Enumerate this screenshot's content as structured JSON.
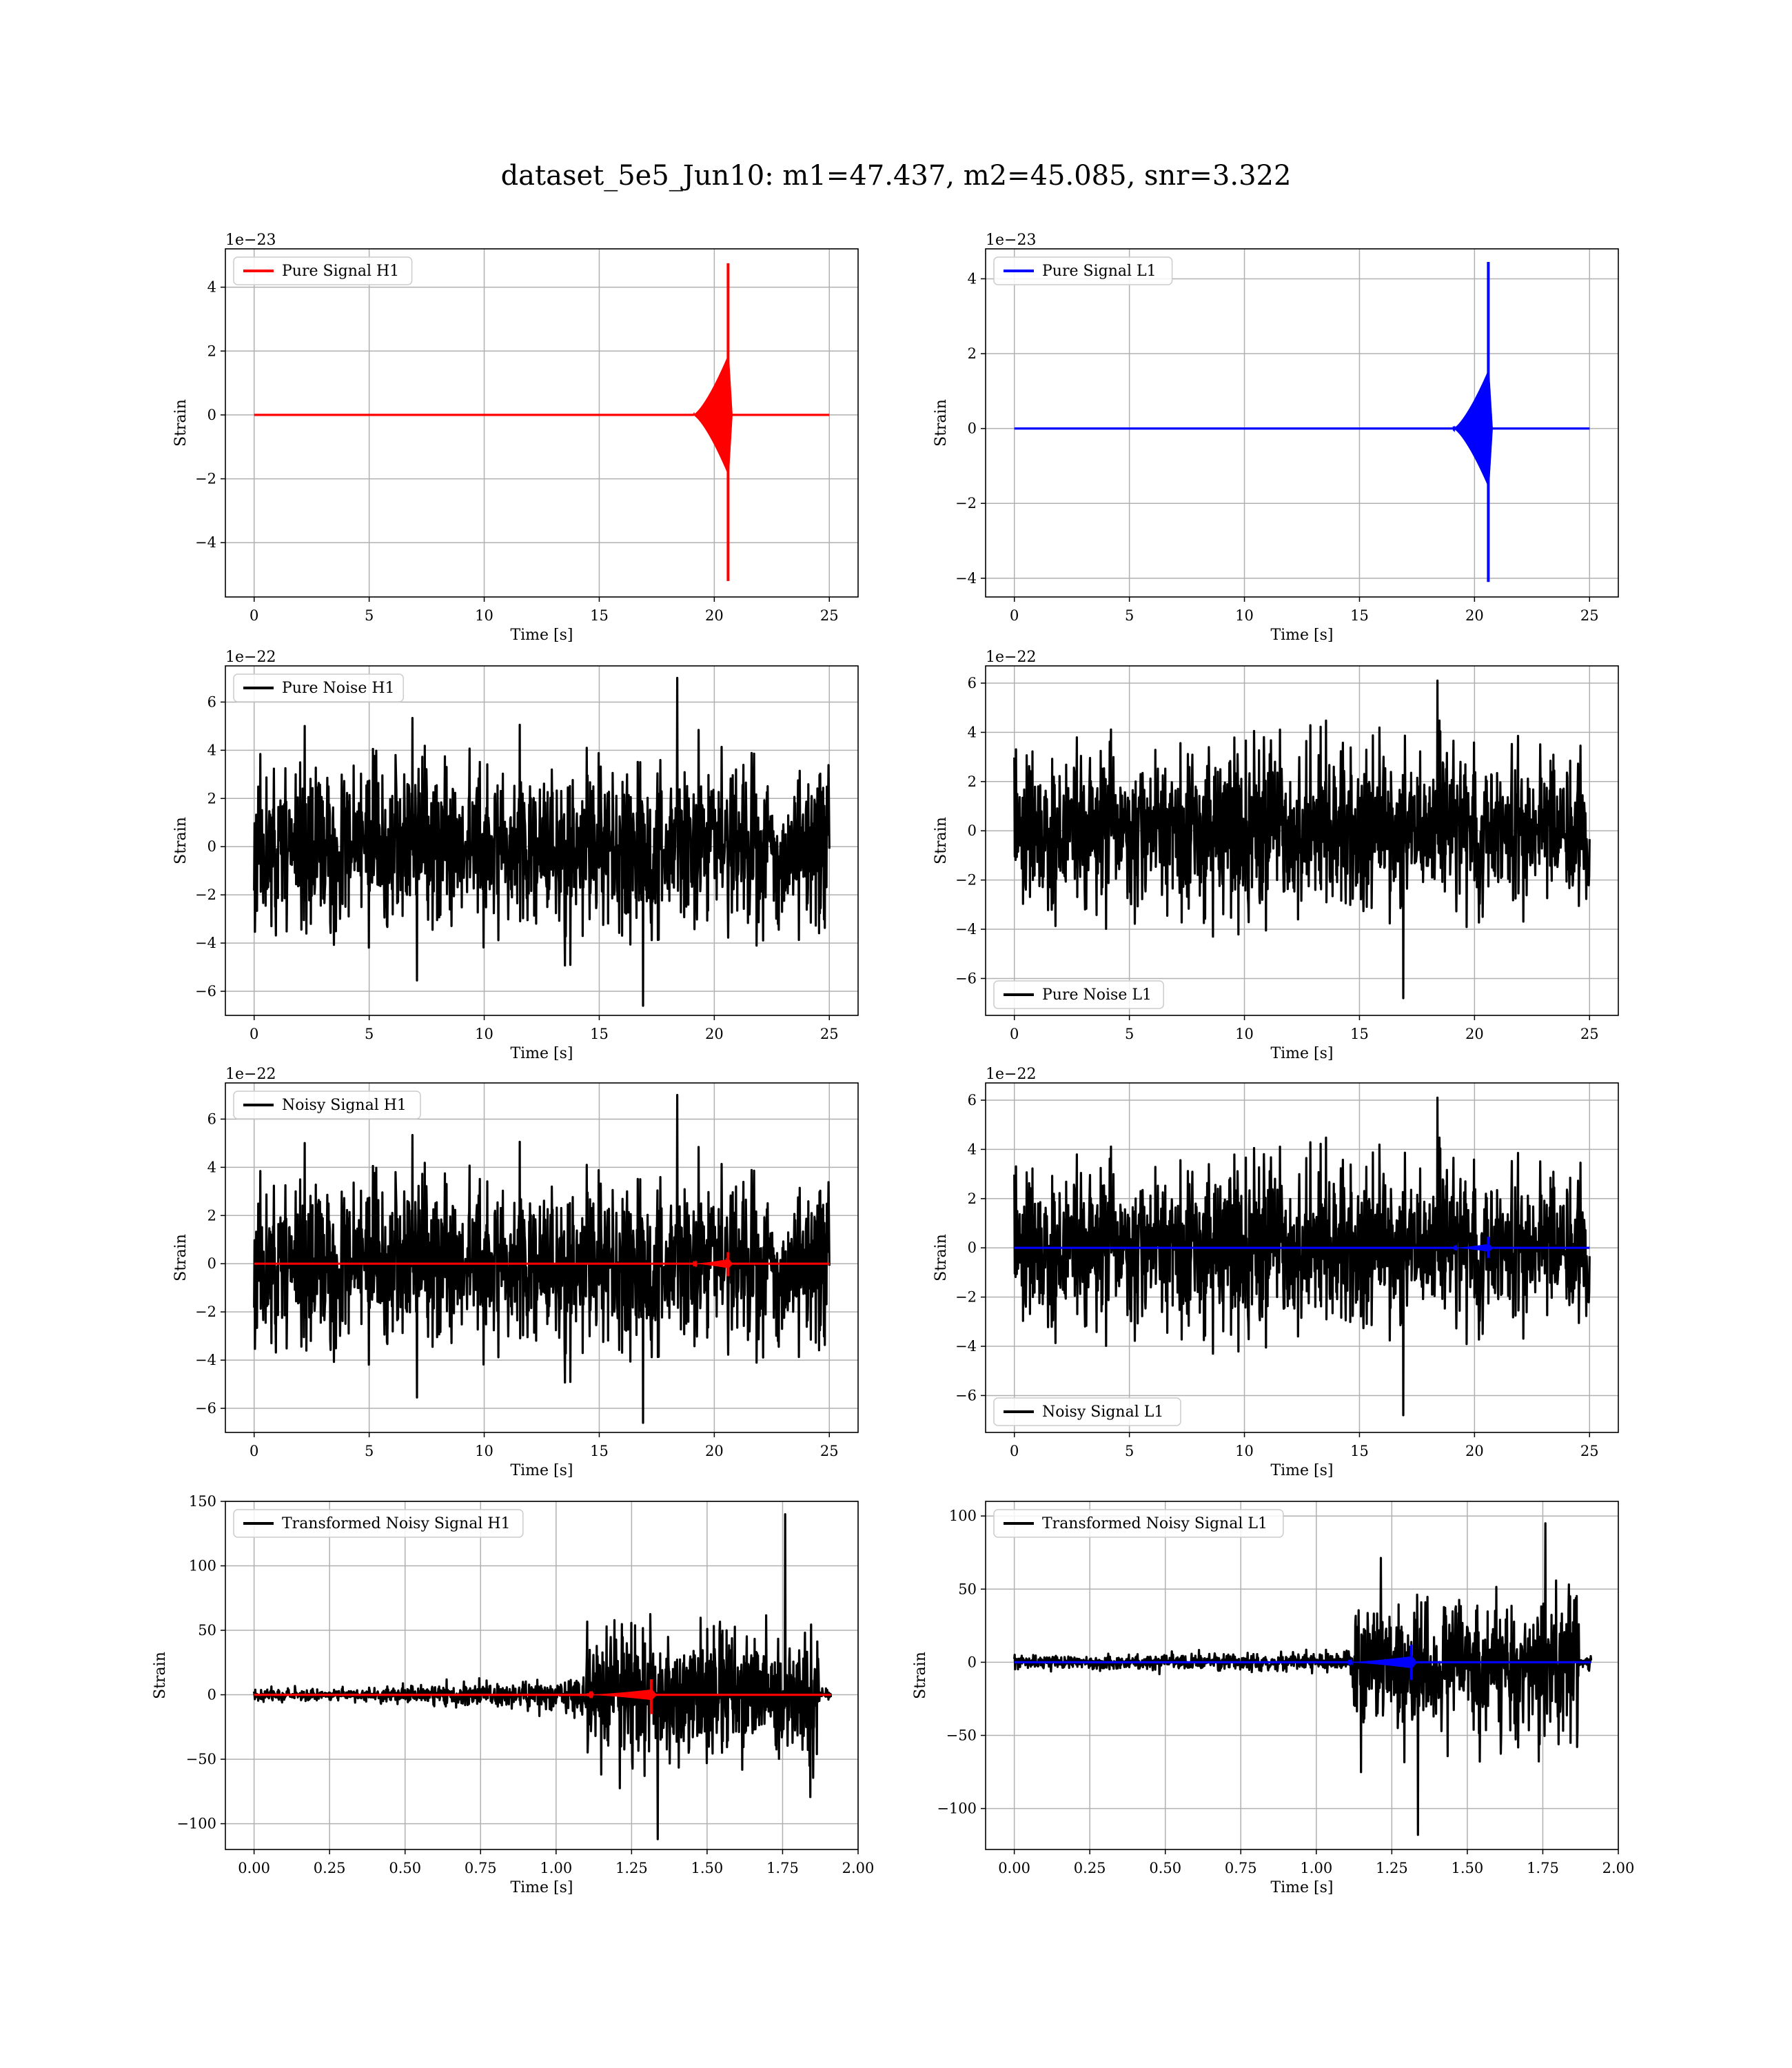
{
  "figure": {
    "title": "dataset_5e5_Jun10: m1=47.437, m2=45.085, snr=3.322"
  },
  "colors": {
    "h1_signal": "#ff0000",
    "l1_signal": "#0000ff",
    "noise": "#000000",
    "grid": "#b0b0b0"
  },
  "chart_data": [
    {
      "id": "pure-signal-h1",
      "type": "line",
      "xlabel": "Time [s]",
      "ylabel": "Strain",
      "offset_text": "1e−23",
      "xlim": [
        -1.25,
        26.25
      ],
      "ylim": [
        -5.7,
        5.2
      ],
      "xticks": [
        0,
        5,
        10,
        15,
        20,
        25
      ],
      "xtick_labels": [
        "0",
        "5",
        "10",
        "15",
        "20",
        "25"
      ],
      "yticks": [
        -4,
        -2,
        0,
        2,
        4
      ],
      "ytick_labels": [
        "−4",
        "−2",
        "0",
        "2",
        "4"
      ],
      "grid": true,
      "legend_position": "upper-left",
      "series": [
        {
          "name": "Pure Signal H1",
          "color": "#ff0000",
          "kind": "chirp",
          "t_start": 0,
          "t_end": 25,
          "t_merge": 20.6,
          "t_ringdown_end": 20.75,
          "peak_pos": 4.75,
          "peak_neg": -5.2,
          "plateau_amp": 1.8
        }
      ]
    },
    {
      "id": "pure-signal-l1",
      "type": "line",
      "xlabel": "Time [s]",
      "ylabel": "Strain",
      "offset_text": "1e−23",
      "xlim": [
        -1.25,
        26.25
      ],
      "ylim": [
        -4.5,
        4.8
      ],
      "xticks": [
        0,
        5,
        10,
        15,
        20,
        25
      ],
      "xtick_labels": [
        "0",
        "5",
        "10",
        "15",
        "20",
        "25"
      ],
      "yticks": [
        -4,
        -2,
        0,
        2,
        4
      ],
      "ytick_labels": [
        "−4",
        "−2",
        "0",
        "2",
        "4"
      ],
      "grid": true,
      "legend_position": "upper-left",
      "series": [
        {
          "name": "Pure Signal L1",
          "color": "#0000ff",
          "kind": "chirp",
          "t_start": 0,
          "t_end": 25,
          "t_merge": 20.6,
          "t_ringdown_end": 20.75,
          "peak_pos": 4.45,
          "peak_neg": -4.1,
          "plateau_amp": 1.5
        }
      ]
    },
    {
      "id": "pure-noise-h1",
      "type": "line",
      "xlabel": "Time [s]",
      "ylabel": "Strain",
      "offset_text": "1e−22",
      "xlim": [
        -1.25,
        26.25
      ],
      "ylim": [
        -7.0,
        7.5
      ],
      "xticks": [
        0,
        5,
        10,
        15,
        20,
        25
      ],
      "xtick_labels": [
        "0",
        "5",
        "10",
        "15",
        "20",
        "25"
      ],
      "yticks": [
        -6,
        -4,
        -2,
        0,
        2,
        4,
        6
      ],
      "ytick_labels": [
        "−6",
        "−4",
        "−2",
        "0",
        "2",
        "4",
        "6"
      ],
      "grid": true,
      "legend_position": "upper-left",
      "series": [
        {
          "name": "Pure Noise H1",
          "color": "#000000",
          "kind": "noise",
          "t_start": 0,
          "t_end": 25,
          "sigma": 1.6,
          "peak_pos": 7.0,
          "peak_neg": -6.6,
          "seed": 11
        }
      ]
    },
    {
      "id": "pure-noise-l1",
      "type": "line",
      "xlabel": "Time [s]",
      "ylabel": "Strain",
      "offset_text": "1e−22",
      "xlim": [
        -1.25,
        26.25
      ],
      "ylim": [
        -7.5,
        6.7
      ],
      "xticks": [
        0,
        5,
        10,
        15,
        20,
        25
      ],
      "xtick_labels": [
        "0",
        "5",
        "10",
        "15",
        "20",
        "25"
      ],
      "yticks": [
        -6,
        -4,
        -2,
        0,
        2,
        4,
        6
      ],
      "ytick_labels": [
        "−6",
        "−4",
        "−2",
        "0",
        "2",
        "4",
        "6"
      ],
      "grid": true,
      "legend_position": "lower-left",
      "series": [
        {
          "name": "Pure Noise L1",
          "color": "#000000",
          "kind": "noise",
          "t_start": 0,
          "t_end": 25,
          "sigma": 1.5,
          "peak_pos": 6.1,
          "peak_neg": -6.8,
          "seed": 23
        }
      ]
    },
    {
      "id": "noisy-signal-h1",
      "type": "line",
      "xlabel": "Time [s]",
      "ylabel": "Strain",
      "offset_text": "1e−22",
      "xlim": [
        -1.25,
        26.25
      ],
      "ylim": [
        -7.0,
        7.5
      ],
      "xticks": [
        0,
        5,
        10,
        15,
        20,
        25
      ],
      "xtick_labels": [
        "0",
        "5",
        "10",
        "15",
        "20",
        "25"
      ],
      "yticks": [
        -6,
        -4,
        -2,
        0,
        2,
        4,
        6
      ],
      "ytick_labels": [
        "−6",
        "−4",
        "−2",
        "0",
        "2",
        "4",
        "6"
      ],
      "grid": true,
      "legend_position": "upper-left",
      "series": [
        {
          "name": "Noisy Signal H1",
          "color": "#000000",
          "kind": "noise",
          "t_start": 0,
          "t_end": 25,
          "sigma": 1.6,
          "peak_pos": 7.0,
          "peak_neg": -6.6,
          "seed": 11
        },
        {
          "color": "#ff0000",
          "kind": "chirp",
          "t_start": 0,
          "t_end": 25,
          "t_merge": 20.6,
          "t_ringdown_end": 20.75,
          "peak_pos": 0.48,
          "peak_neg": -0.52,
          "plateau_amp": 0.18
        }
      ]
    },
    {
      "id": "noisy-signal-l1",
      "type": "line",
      "xlabel": "Time [s]",
      "ylabel": "Strain",
      "offset_text": "1e−22",
      "xlim": [
        -1.25,
        26.25
      ],
      "ylim": [
        -7.5,
        6.7
      ],
      "xticks": [
        0,
        5,
        10,
        15,
        20,
        25
      ],
      "xtick_labels": [
        "0",
        "5",
        "10",
        "15",
        "20",
        "25"
      ],
      "yticks": [
        -6,
        -4,
        -2,
        0,
        2,
        4,
        6
      ],
      "ytick_labels": [
        "−6",
        "−4",
        "−2",
        "0",
        "2",
        "4",
        "6"
      ],
      "grid": true,
      "legend_position": "lower-left",
      "series": [
        {
          "name": "Noisy Signal L1",
          "color": "#000000",
          "kind": "noise",
          "t_start": 0,
          "t_end": 25,
          "sigma": 1.5,
          "peak_pos": 6.1,
          "peak_neg": -6.8,
          "seed": 23
        },
        {
          "color": "#0000ff",
          "kind": "chirp",
          "t_start": 0,
          "t_end": 25,
          "t_merge": 20.6,
          "t_ringdown_end": 20.75,
          "peak_pos": 0.45,
          "peak_neg": -0.41,
          "plateau_amp": 0.15
        }
      ]
    },
    {
      "id": "transformed-noisy-signal-h1",
      "type": "line",
      "xlabel": "Time [s]",
      "ylabel": "Strain",
      "offset_text": "",
      "xlim": [
        -0.095,
        2.0
      ],
      "ylim": [
        -120,
        150
      ],
      "xticks": [
        0.0,
        0.25,
        0.5,
        0.75,
        1.0,
        1.25,
        1.5,
        1.75,
        2.0
      ],
      "xtick_labels": [
        "0.00",
        "0.25",
        "0.50",
        "0.75",
        "1.00",
        "1.25",
        "1.50",
        "1.75",
        "2.00"
      ],
      "yticks": [
        -100,
        -50,
        0,
        50,
        100,
        150
      ],
      "ytick_labels": [
        "−100",
        "−50",
        "0",
        "50",
        "100",
        "150"
      ],
      "grid": true,
      "legend_position": "upper-left",
      "series": [
        {
          "name": "Transformed Noisy Signal H1",
          "color": "#000000",
          "kind": "whitened",
          "t_start": 0,
          "t_end": 1.91,
          "t_jump": 1.1,
          "t_cut": 1.87,
          "amp_early": 4,
          "amp_mid": 12,
          "amp_late": 45,
          "peak_pos": 140,
          "peak_neg": -112,
          "seed": 37
        },
        {
          "color": "#ff0000",
          "kind": "chirp",
          "t_start": 0,
          "t_end": 1.91,
          "t_merge": 1.315,
          "t_ringdown_end": 1.33,
          "t_chirp_start": 1.1,
          "peak_pos": 12,
          "peak_neg": -15,
          "plateau_amp": 4
        }
      ]
    },
    {
      "id": "transformed-noisy-signal-l1",
      "type": "line",
      "xlabel": "Time [s]",
      "ylabel": "Strain",
      "offset_text": "",
      "xlim": [
        -0.095,
        2.0
      ],
      "ylim": [
        -128,
        110
      ],
      "xticks": [
        0.0,
        0.25,
        0.5,
        0.75,
        1.0,
        1.25,
        1.5,
        1.75,
        2.0
      ],
      "xtick_labels": [
        "0.00",
        "0.25",
        "0.50",
        "0.75",
        "1.00",
        "1.25",
        "1.50",
        "1.75",
        "2.00"
      ],
      "yticks": [
        -100,
        -50,
        0,
        50,
        100
      ],
      "ytick_labels": [
        "−100",
        "−50",
        "0",
        "50",
        "100"
      ],
      "grid": true,
      "legend_position": "upper-left",
      "series": [
        {
          "name": "Transformed Noisy Signal L1",
          "color": "#000000",
          "kind": "whitened",
          "t_start": 0,
          "t_end": 1.91,
          "t_jump": 1.12,
          "t_cut": 1.87,
          "amp_early": 4,
          "amp_mid": 6,
          "amp_late": 40,
          "peak_pos": 95,
          "peak_neg": -118,
          "seed": 53
        },
        {
          "color": "#0000ff",
          "kind": "chirp",
          "t_start": 0,
          "t_end": 1.91,
          "t_merge": 1.315,
          "t_ringdown_end": 1.33,
          "t_chirp_start": 1.1,
          "peak_pos": 12,
          "peak_neg": -12,
          "plateau_amp": 4
        }
      ]
    }
  ]
}
